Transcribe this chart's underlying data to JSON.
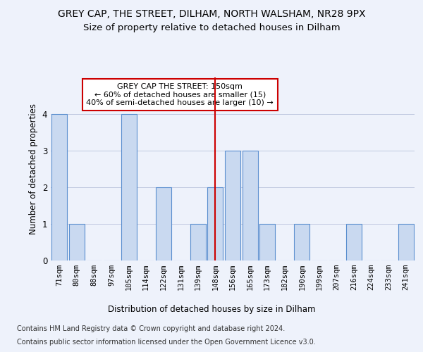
{
  "title": "GREY CAP, THE STREET, DILHAM, NORTH WALSHAM, NR28 9PX",
  "subtitle": "Size of property relative to detached houses in Dilham",
  "xlabel": "Distribution of detached houses by size in Dilham",
  "ylabel": "Number of detached properties",
  "categories": [
    "71sqm",
    "80sqm",
    "88sqm",
    "97sqm",
    "105sqm",
    "114sqm",
    "122sqm",
    "131sqm",
    "139sqm",
    "148sqm",
    "156sqm",
    "165sqm",
    "173sqm",
    "182sqm",
    "190sqm",
    "199sqm",
    "207sqm",
    "216sqm",
    "224sqm",
    "233sqm",
    "241sqm"
  ],
  "values": [
    4,
    1,
    0,
    0,
    4,
    0,
    2,
    0,
    1,
    2,
    3,
    3,
    1,
    0,
    1,
    0,
    0,
    1,
    0,
    0,
    1
  ],
  "bar_color": "#c9d9f0",
  "bar_edge_color": "#5b8fcf",
  "highlight_index": 9,
  "highlight_line_color": "#cc0000",
  "annotation_text": "GREY CAP THE STREET: 150sqm\n← 60% of detached houses are smaller (15)\n40% of semi-detached houses are larger (10) →",
  "annotation_box_color": "#ffffff",
  "annotation_box_edge": "#cc0000",
  "ylim": [
    0,
    5
  ],
  "yticks": [
    0,
    1,
    2,
    3,
    4
  ],
  "footer1": "Contains HM Land Registry data © Crown copyright and database right 2024.",
  "footer2": "Contains public sector information licensed under the Open Government Licence v3.0.",
  "background_color": "#eef2fb",
  "title_fontsize": 10,
  "subtitle_fontsize": 9.5,
  "axis_label_fontsize": 8.5,
  "tick_fontsize": 7.5,
  "footer_fontsize": 7
}
